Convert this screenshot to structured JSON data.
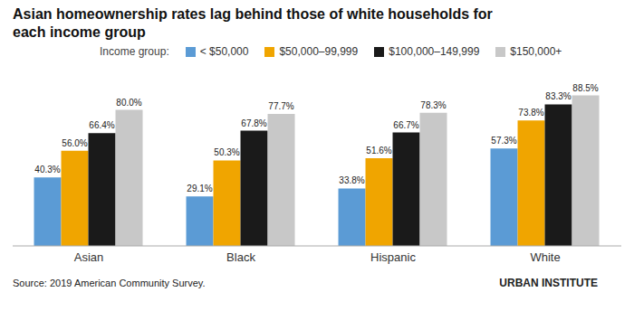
{
  "chart_data": {
    "type": "bar",
    "title": "Asian homeownership rates lag behind those of white households for each income group",
    "categories": [
      "Asian",
      "Black",
      "Hispanic",
      "White"
    ],
    "series": [
      {
        "name": "< $50,000",
        "color": "#5b9bd5",
        "values": [
          40.3,
          29.1,
          33.8,
          57.3
        ],
        "value_labels": [
          "40.3%",
          "29.1%",
          "33.8%",
          "57.3%"
        ]
      },
      {
        "name": "$50,000–99,999",
        "color": "#f0a500",
        "values": [
          56.0,
          50.3,
          51.6,
          73.8
        ],
        "value_labels": [
          "56.0%",
          "50.3%",
          "51.6%",
          "73.8%"
        ]
      },
      {
        "name": "$100,000–149,999",
        "color": "#1a1a1a",
        "values": [
          66.4,
          67.8,
          66.7,
          83.3
        ],
        "value_labels": [
          "66.4%",
          "67.8%",
          "66.7%",
          "83.3%"
        ]
      },
      {
        "name": "$150,000+",
        "color": "#c8c8c8",
        "values": [
          80.0,
          77.7,
          78.3,
          88.5
        ],
        "value_labels": [
          "80.0%",
          "77.7%",
          "78.3%",
          "88.5%"
        ]
      }
    ],
    "ylim": [
      0,
      100
    ],
    "grid": false,
    "legend": "top",
    "data_labels": true,
    "tick_labels": "x",
    "annotations": [
      "Income group:",
      "Source: 2019 American Community Survey.",
      "URBAN INSTITUTE"
    ]
  }
}
